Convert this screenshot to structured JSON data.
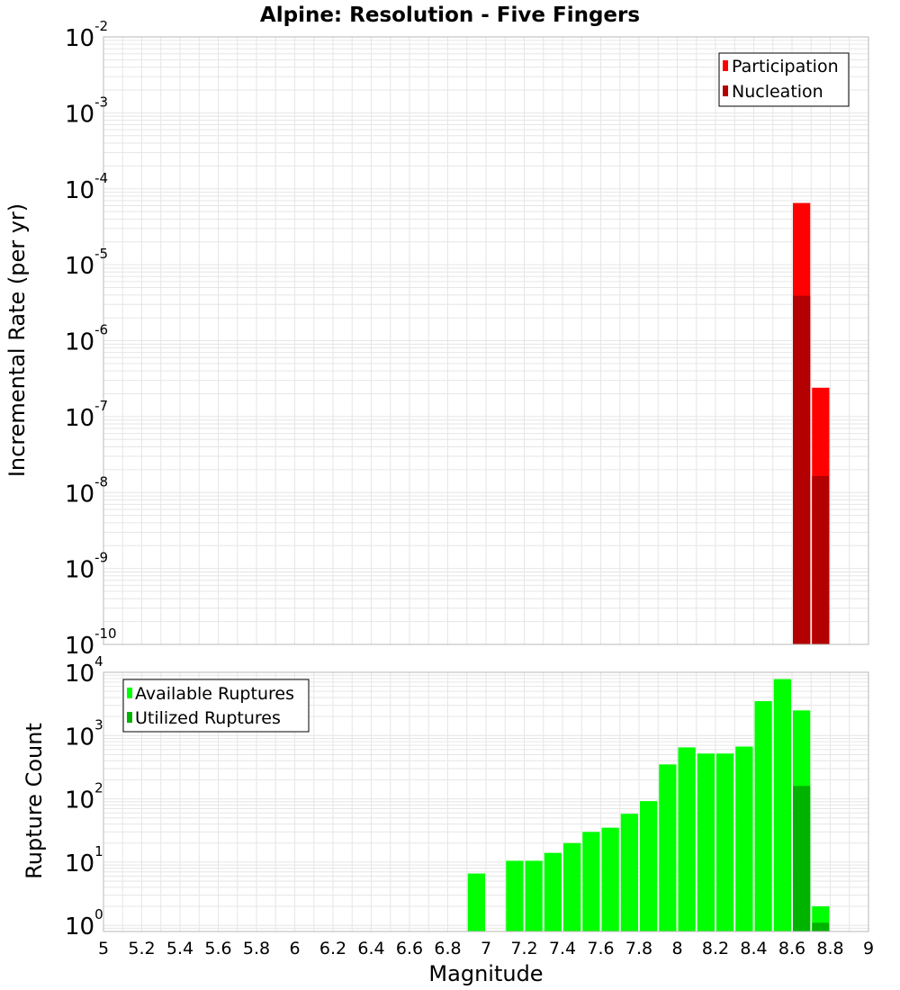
{
  "colors": {
    "participation": "#ff0000",
    "nucleation": "#b30000",
    "available": "#00ff00",
    "utilized": "#00b300",
    "grid": "#e6e6e6",
    "frame": "#b8b8b8"
  },
  "chart_data": {
    "type": "bar",
    "title": "Alpine: Resolution - Five Fingers",
    "xlabel": "Magnitude",
    "xlim": [
      5,
      9
    ],
    "xticks": [
      "5",
      "5.2",
      "5.4",
      "5.6",
      "5.8",
      "6",
      "6.2",
      "6.4",
      "6.6",
      "6.8",
      "7",
      "7.2",
      "7.4",
      "7.6",
      "7.8",
      "8",
      "8.2",
      "8.4",
      "8.6",
      "8.8",
      "9"
    ],
    "top": {
      "ylabel": "Incremental Rate (per yr)",
      "yscale": "log",
      "ylim": [
        1e-10,
        0.01
      ],
      "yticks": [
        {
          "base": "10",
          "exp": "-10",
          "value": 1e-10
        },
        {
          "base": "10",
          "exp": "-9",
          "value": 1e-09
        },
        {
          "base": "10",
          "exp": "-8",
          "value": 1e-08
        },
        {
          "base": "10",
          "exp": "-7",
          "value": 1e-07
        },
        {
          "base": "10",
          "exp": "-6",
          "value": 1e-06
        },
        {
          "base": "10",
          "exp": "-5",
          "value": 1e-05
        },
        {
          "base": "10",
          "exp": "-4",
          "value": 0.0001
        },
        {
          "base": "10",
          "exp": "-3",
          "value": 0.001
        },
        {
          "base": "10",
          "exp": "-2",
          "value": 0.01
        }
      ],
      "legend_position": "top-right",
      "series": [
        {
          "name": "Participation",
          "color_key": "participation",
          "x": [
            8.65,
            8.75
          ],
          "values": [
            6.5e-05,
            2.4e-07
          ]
        },
        {
          "name": "Nucleation",
          "color_key": "nucleation",
          "x": [
            8.65,
            8.75
          ],
          "values": [
            3.9e-06,
            1.65e-08
          ]
        }
      ]
    },
    "bottom": {
      "ylabel": "Rupture Count",
      "yscale": "log",
      "ylim": [
        0.8,
        10000
      ],
      "yticks": [
        {
          "base": "10",
          "exp": "0",
          "value": 1
        },
        {
          "base": "10",
          "exp": "1",
          "value": 10
        },
        {
          "base": "10",
          "exp": "2",
          "value": 100
        },
        {
          "base": "10",
          "exp": "3",
          "value": 1000
        },
        {
          "base": "10",
          "exp": "4",
          "value": 10000
        }
      ],
      "legend_position": "top-left",
      "series": [
        {
          "name": "Available Ruptures",
          "color_key": "available",
          "x": [
            6.95,
            7.15,
            7.25,
            7.35,
            7.45,
            7.55,
            7.65,
            7.75,
            7.85,
            7.95,
            8.05,
            8.15,
            8.25,
            8.35,
            8.45,
            8.55,
            8.65,
            8.75
          ],
          "values": [
            6.6,
            10.5,
            10.5,
            14,
            20,
            30,
            35,
            58,
            92,
            350,
            650,
            520,
            520,
            670,
            3500,
            7800,
            2500,
            2
          ]
        },
        {
          "name": "Utilized Ruptures",
          "color_key": "utilized",
          "x": [
            8.65,
            8.75
          ],
          "values": [
            160,
            1.1
          ]
        }
      ]
    }
  }
}
